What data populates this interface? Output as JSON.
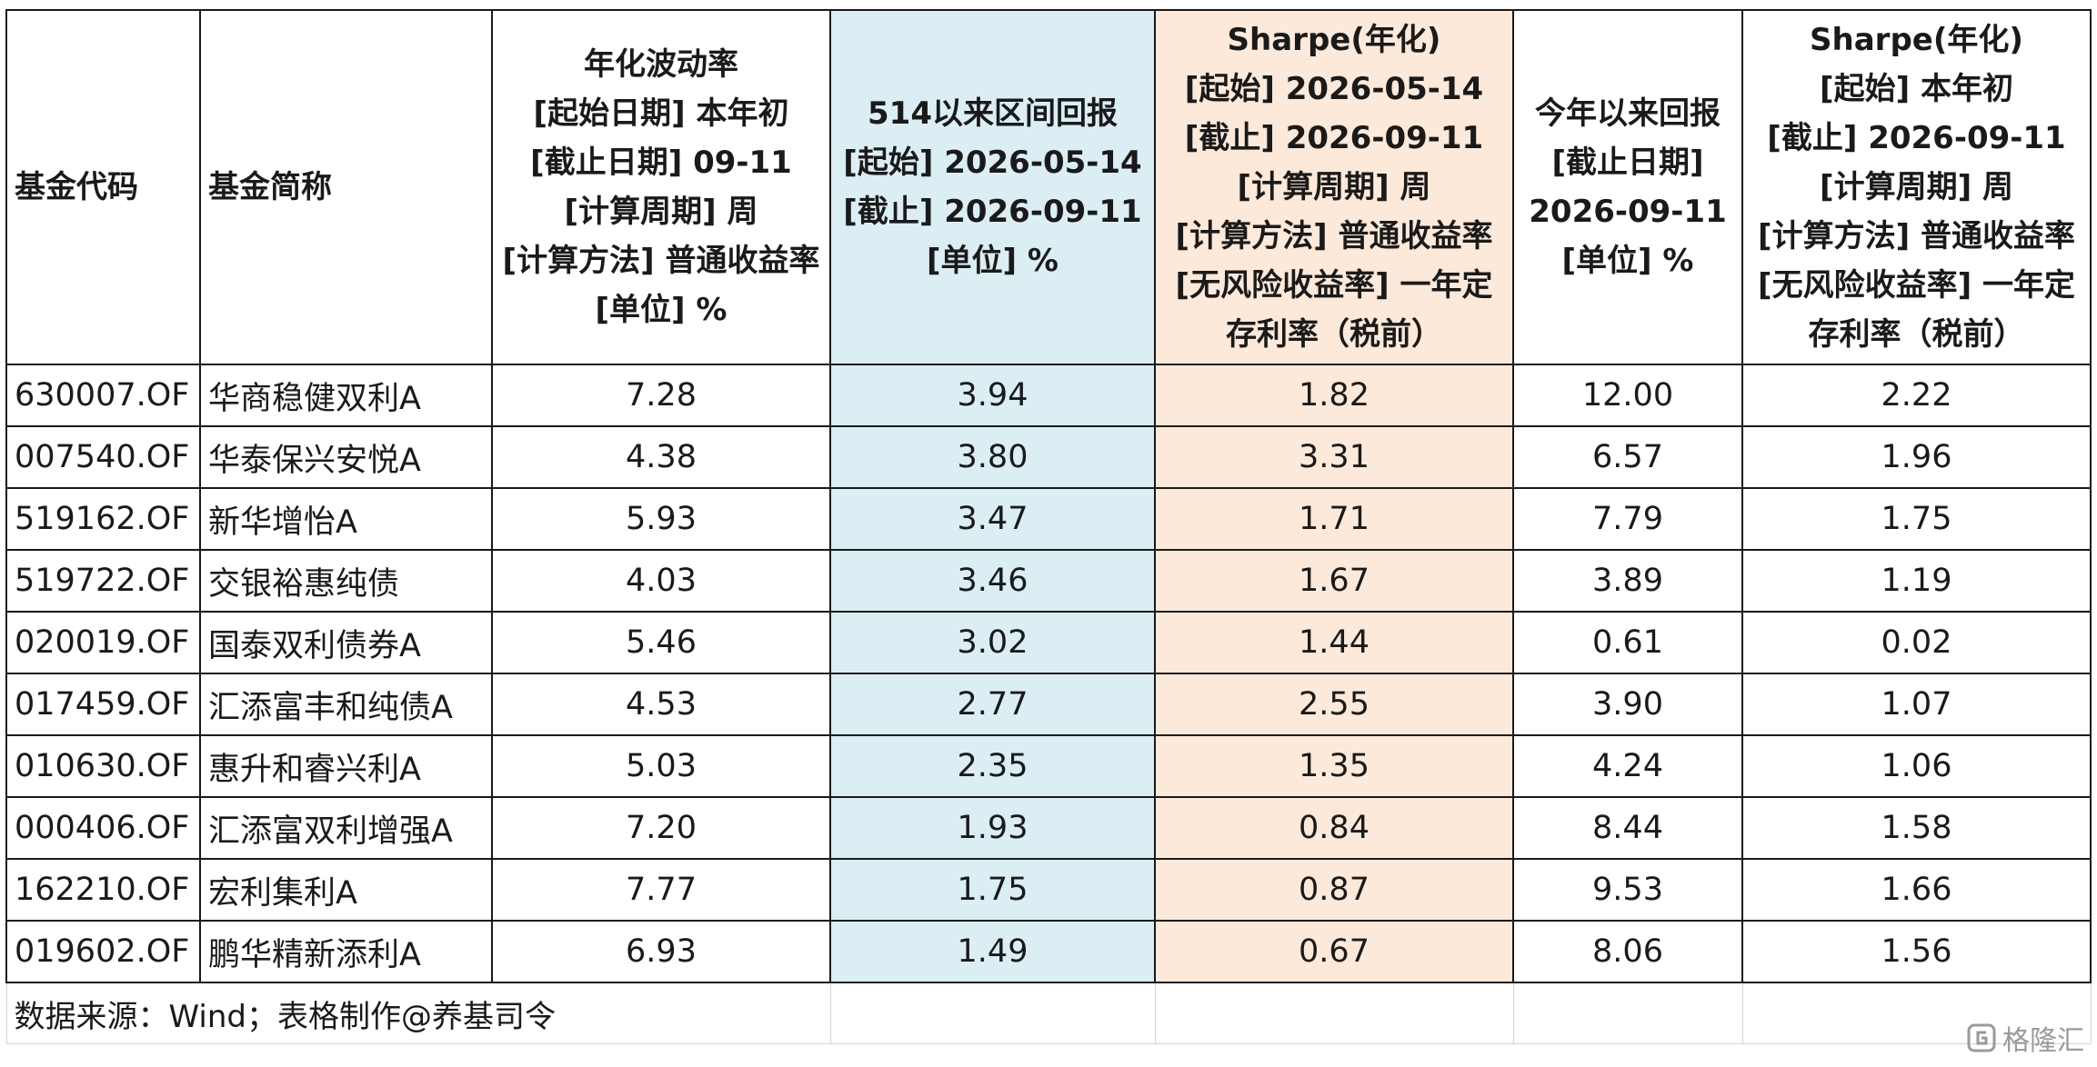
{
  "columns": [
    {
      "label": "基金代码"
    },
    {
      "label": "基金简称"
    },
    {
      "label": "年化波动率\n[起始日期] 本年初\n[截止日期] 09-11\n[计算周期] 周\n[计算方法] 普通收益率\n[单位] %"
    },
    {
      "label": "514以来区间回报\n[起始] 2026-05-14\n[截止] 2026-09-11\n[单位] %"
    },
    {
      "label": "Sharpe(年化)\n[起始] 2026-05-14\n[截止] 2026-09-11\n[计算周期] 周\n[计算方法] 普通收益率\n[无风险收益率] 一年定\n存利率（税前）"
    },
    {
      "label": "今年以来回报\n[截止日期]\n2026-09-11\n[单位] %"
    },
    {
      "label": "Sharpe(年化)\n[起始] 本年初\n[截止] 2026-09-11\n[计算周期] 周\n[计算方法] 普通收益率\n[无风险收益率] 一年定\n存利率（税前）"
    }
  ],
  "rows": [
    {
      "code": "630007.OF",
      "name": "华商稳健双利A",
      "vol": "7.28",
      "ret514": "3.94",
      "sharpe514": "1.82",
      "ytd": "12.00",
      "sharpe_ytd": "2.22"
    },
    {
      "code": "007540.OF",
      "name": "华泰保兴安悦A",
      "vol": "4.38",
      "ret514": "3.80",
      "sharpe514": "3.31",
      "ytd": "6.57",
      "sharpe_ytd": "1.96"
    },
    {
      "code": "519162.OF",
      "name": "新华增怡A",
      "vol": "5.93",
      "ret514": "3.47",
      "sharpe514": "1.71",
      "ytd": "7.79",
      "sharpe_ytd": "1.75"
    },
    {
      "code": "519722.OF",
      "name": "交银裕惠纯债",
      "vol": "4.03",
      "ret514": "3.46",
      "sharpe514": "1.67",
      "ytd": "3.89",
      "sharpe_ytd": "1.19"
    },
    {
      "code": "020019.OF",
      "name": "国泰双利债券A",
      "vol": "5.46",
      "ret514": "3.02",
      "sharpe514": "1.44",
      "ytd": "0.61",
      "sharpe_ytd": "0.02"
    },
    {
      "code": "017459.OF",
      "name": "汇添富丰和纯债A",
      "vol": "4.53",
      "ret514": "2.77",
      "sharpe514": "2.55",
      "ytd": "3.90",
      "sharpe_ytd": "1.07"
    },
    {
      "code": "010630.OF",
      "name": "惠升和睿兴利A",
      "vol": "5.03",
      "ret514": "2.35",
      "sharpe514": "1.35",
      "ytd": "4.24",
      "sharpe_ytd": "1.06"
    },
    {
      "code": "000406.OF",
      "name": "汇添富双利增强A",
      "vol": "7.20",
      "ret514": "1.93",
      "sharpe514": "0.84",
      "ytd": "8.44",
      "sharpe_ytd": "1.58"
    },
    {
      "code": "162210.OF",
      "name": "宏利集利A",
      "vol": "7.77",
      "ret514": "1.75",
      "sharpe514": "0.87",
      "ytd": "9.53",
      "sharpe_ytd": "1.66"
    },
    {
      "code": "019602.OF",
      "name": "鹏华精新添利A",
      "vol": "6.93",
      "ret514": "1.49",
      "sharpe514": "0.67",
      "ytd": "8.06",
      "sharpe_ytd": "1.56"
    }
  ],
  "footer": {
    "source": "数据来源：Wind；表格制作@养基司令"
  },
  "watermark": {
    "text": "格隆汇",
    "icon": "gelonghui-logo-icon"
  },
  "colors": {
    "highlight_blue": "#daeef3",
    "highlight_peach": "#fde9d9"
  }
}
